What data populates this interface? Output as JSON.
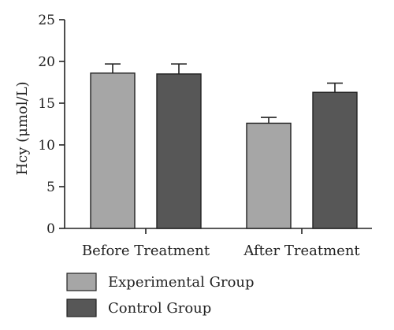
{
  "chart_data": {
    "type": "bar",
    "title": "",
    "xlabel": "",
    "ylabel": "Hcy (μmol/L)",
    "ylim": [
      0,
      25
    ],
    "yticks": [
      0,
      5,
      10,
      15,
      20,
      25
    ],
    "categories": [
      "Before Treatment",
      "After Treatment"
    ],
    "series": [
      {
        "name": "Experimental Group",
        "color": "#a6a6a6",
        "values": [
          18.6,
          12.6
        ],
        "errors": [
          1.1,
          0.7
        ]
      },
      {
        "name": "Control Group",
        "color": "#575757",
        "values": [
          18.5,
          16.3
        ],
        "errors": [
          1.2,
          1.1
        ]
      }
    ],
    "error_bars": true,
    "grid": false,
    "legend_position": "bottom-left"
  }
}
